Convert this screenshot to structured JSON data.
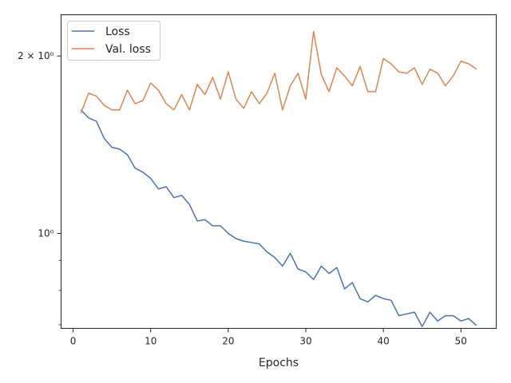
{
  "chart_data": {
    "type": "line",
    "title": "",
    "xlabel": "Epochs",
    "ylabel": "",
    "yscale": "log",
    "xlim": [
      -1.55,
      54.55
    ],
    "ylim": [
      0.69,
      2.35
    ],
    "x_ticks": [
      0,
      10,
      20,
      30,
      40,
      50
    ],
    "x_tick_labels": [
      "0",
      "10",
      "20",
      "30",
      "40",
      "50"
    ],
    "y_major_ticks": [
      1,
      2
    ],
    "y_major_tick_labels": [
      "10⁰",
      "2 × 10⁰"
    ],
    "y_minor_ticks": [
      0.7,
      0.8,
      0.9
    ],
    "grid": false,
    "legend_position": "upper-left",
    "x": [
      1,
      2,
      3,
      4,
      5,
      6,
      7,
      8,
      9,
      10,
      11,
      12,
      13,
      14,
      15,
      16,
      17,
      18,
      19,
      20,
      21,
      22,
      23,
      24,
      25,
      26,
      27,
      28,
      29,
      30,
      31,
      32,
      33,
      34,
      35,
      36,
      37,
      38,
      39,
      40,
      41,
      42,
      43,
      44,
      45,
      46,
      47,
      48,
      49,
      50,
      51,
      52
    ],
    "series": [
      {
        "name": "Loss",
        "color": "#4c72b0",
        "values": [
          1.62,
          1.57,
          1.55,
          1.45,
          1.4,
          1.39,
          1.36,
          1.29,
          1.27,
          1.24,
          1.19,
          1.2,
          1.15,
          1.16,
          1.12,
          1.05,
          1.055,
          1.03,
          1.03,
          1.0,
          0.98,
          0.97,
          0.965,
          0.96,
          0.93,
          0.91,
          0.88,
          0.925,
          0.87,
          0.86,
          0.835,
          0.88,
          0.855,
          0.875,
          0.805,
          0.825,
          0.775,
          0.765,
          0.785,
          0.775,
          0.77,
          0.725,
          0.73,
          0.735,
          0.695,
          0.735,
          0.71,
          0.725,
          0.725,
          0.71,
          0.717,
          0.698
        ]
      },
      {
        "name": "Val. loss",
        "color": "#dd8452",
        "values": [
          1.6,
          1.73,
          1.71,
          1.65,
          1.62,
          1.62,
          1.75,
          1.66,
          1.68,
          1.8,
          1.75,
          1.66,
          1.62,
          1.72,
          1.62,
          1.79,
          1.72,
          1.84,
          1.69,
          1.88,
          1.69,
          1.63,
          1.74,
          1.66,
          1.73,
          1.87,
          1.62,
          1.78,
          1.87,
          1.69,
          2.2,
          1.86,
          1.74,
          1.91,
          1.85,
          1.78,
          1.92,
          1.74,
          1.74,
          1.98,
          1.94,
          1.88,
          1.87,
          1.91,
          1.79,
          1.9,
          1.87,
          1.78,
          1.85,
          1.96,
          1.94,
          1.9
        ]
      }
    ]
  }
}
